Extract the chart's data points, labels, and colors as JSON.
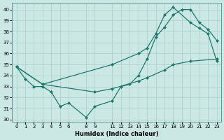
{
  "xlabel": "Humidex (Indice chaleur)",
  "bg_color": "#cce8e4",
  "line_color": "#1a7a6e",
  "grid_color": "#aacfcb",
  "xlim": [
    -0.5,
    23.5
  ],
  "ylim": [
    29.8,
    40.6
  ],
  "yticks": [
    30,
    31,
    32,
    33,
    34,
    35,
    36,
    37,
    38,
    39,
    40
  ],
  "xticks": [
    0,
    1,
    2,
    3,
    4,
    5,
    6,
    8,
    9,
    11,
    12,
    13,
    14,
    15,
    16,
    17,
    18,
    19,
    20,
    21,
    22,
    23
  ],
  "line1_x": [
    0,
    1,
    2,
    3,
    4,
    5,
    6,
    8,
    9,
    11,
    12,
    13,
    14,
    15,
    16,
    17,
    18,
    19,
    20,
    21,
    22,
    23
  ],
  "line1_y": [
    34.8,
    33.7,
    33.0,
    33.0,
    32.5,
    31.2,
    31.5,
    30.2,
    31.2,
    31.7,
    33.0,
    33.2,
    34.0,
    35.5,
    37.5,
    38.4,
    39.5,
    40.0,
    40.0,
    38.8,
    38.2,
    37.2
  ],
  "line2_x": [
    0,
    3,
    11,
    14,
    15,
    16,
    17,
    18,
    20,
    21,
    22,
    23
  ],
  "line2_y": [
    34.8,
    33.2,
    35.0,
    36.0,
    36.5,
    37.8,
    39.5,
    40.2,
    38.8,
    38.3,
    37.8,
    35.3
  ],
  "line3_x": [
    0,
    3,
    9,
    11,
    14,
    15,
    17,
    18,
    20,
    23
  ],
  "line3_y": [
    34.8,
    33.2,
    32.5,
    32.8,
    33.5,
    33.8,
    34.5,
    35.0,
    35.3,
    35.5
  ]
}
